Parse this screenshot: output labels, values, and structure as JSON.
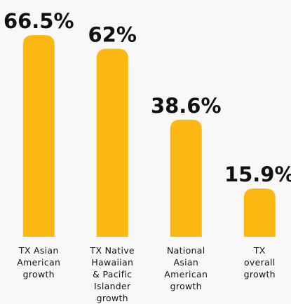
{
  "chart_data": {
    "type": "bar",
    "categories": [
      "TX Asian\nAmerican\ngrowth",
      "TX Native\nHawaiian\n& Pacific\nIslander\ngrowth",
      "National\nAsian\nAmerican\ngrowth",
      "TX\noverall\ngrowth"
    ],
    "values": [
      66.5,
      62,
      38.6,
      15.9
    ],
    "value_labels": [
      "66.5%",
      "62%",
      "38.6%",
      "15.9%"
    ],
    "color": "#fbb812",
    "ylim": [
      0,
      70
    ]
  }
}
